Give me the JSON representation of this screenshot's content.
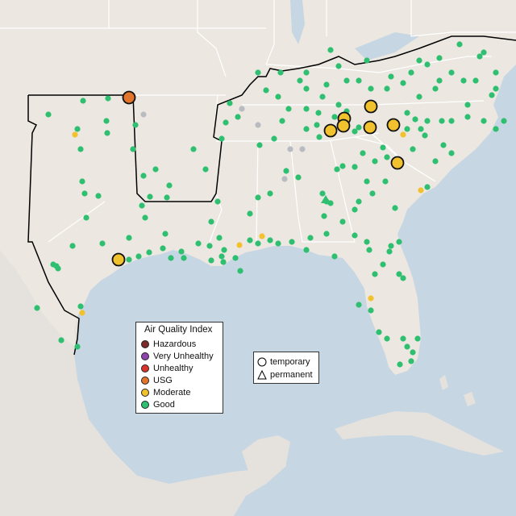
{
  "map": {
    "colors": {
      "water": "#c7d6e3",
      "land": "#ece8e1",
      "foreign_land": "#e5e2dd",
      "state_border": "#ffffff",
      "region_outline": "#000000"
    },
    "aqi_colors": {
      "Good": "#2fbf71",
      "Moderate": "#f2c12e",
      "USG": "#e0752b",
      "Unhealthy": "#d9342b",
      "Very Unhealthy": "#8e44ad",
      "Hazardous": "#7e2a2a",
      "NoData": "#b8bcc0"
    }
  },
  "legend": {
    "title": "Air Quality Index",
    "items": [
      {
        "label": "Hazardous",
        "color": "#7e2a2a"
      },
      {
        "label": "Very Unhealthy",
        "color": "#8e44ad"
      },
      {
        "label": "Unhealthy",
        "color": "#d9342b"
      },
      {
        "label": "USG",
        "color": "#e0752b"
      },
      {
        "label": "Moderate",
        "color": "#f2c12e"
      },
      {
        "label": "Good",
        "color": "#2fbf71"
      }
    ]
  },
  "shape_legend": {
    "temporary_label": "temporary",
    "permanent_label": "permanent"
  }
}
